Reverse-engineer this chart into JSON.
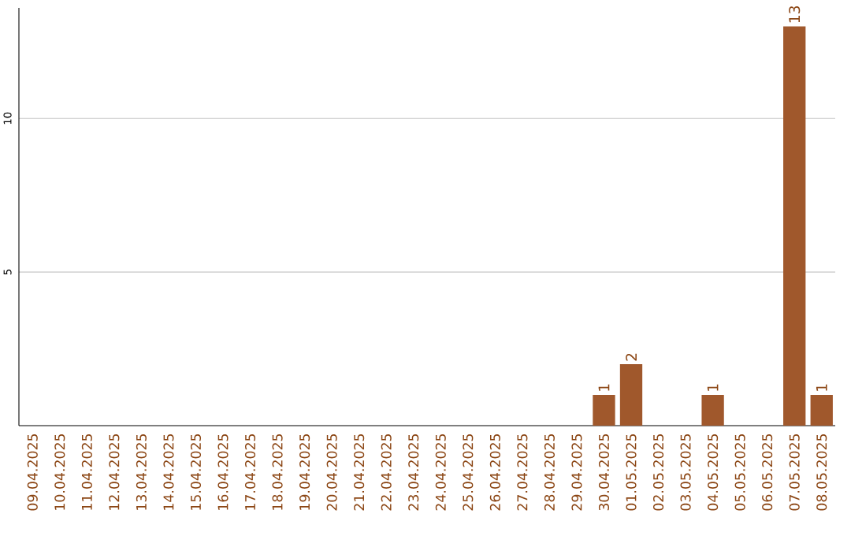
{
  "chart_data": {
    "type": "bar",
    "categories": [
      "09.04.2025",
      "10.04.2025",
      "11.04.2025",
      "12.04.2025",
      "13.04.2025",
      "14.04.2025",
      "15.04.2025",
      "16.04.2025",
      "17.04.2025",
      "18.04.2025",
      "19.04.2025",
      "20.04.2025",
      "21.04.2025",
      "22.04.2025",
      "23.04.2025",
      "24.04.2025",
      "25.04.2025",
      "26.04.2025",
      "27.04.2025",
      "28.04.2025",
      "29.04.2025",
      "30.04.2025",
      "01.05.2025",
      "02.05.2025",
      "03.05.2025",
      "04.05.2025",
      "05.05.2025",
      "06.05.2025",
      "07.05.2025",
      "08.05.2025"
    ],
    "values": [
      0,
      0,
      0,
      0,
      0,
      0,
      0,
      0,
      0,
      0,
      0,
      0,
      0,
      0,
      0,
      0,
      0,
      0,
      0,
      0,
      0,
      1,
      2,
      0,
      0,
      1,
      0,
      0,
      13,
      1
    ],
    "value_labels": [
      null,
      null,
      null,
      null,
      null,
      null,
      null,
      null,
      null,
      null,
      null,
      null,
      null,
      null,
      null,
      null,
      null,
      null,
      null,
      null,
      null,
      "1",
      "2",
      null,
      null,
      "1",
      null,
      null,
      "13",
      "1"
    ],
    "color": "#a0582c",
    "ylim": [
      0,
      13.6
    ],
    "yticks": [
      5,
      10
    ],
    "grid": "y"
  }
}
